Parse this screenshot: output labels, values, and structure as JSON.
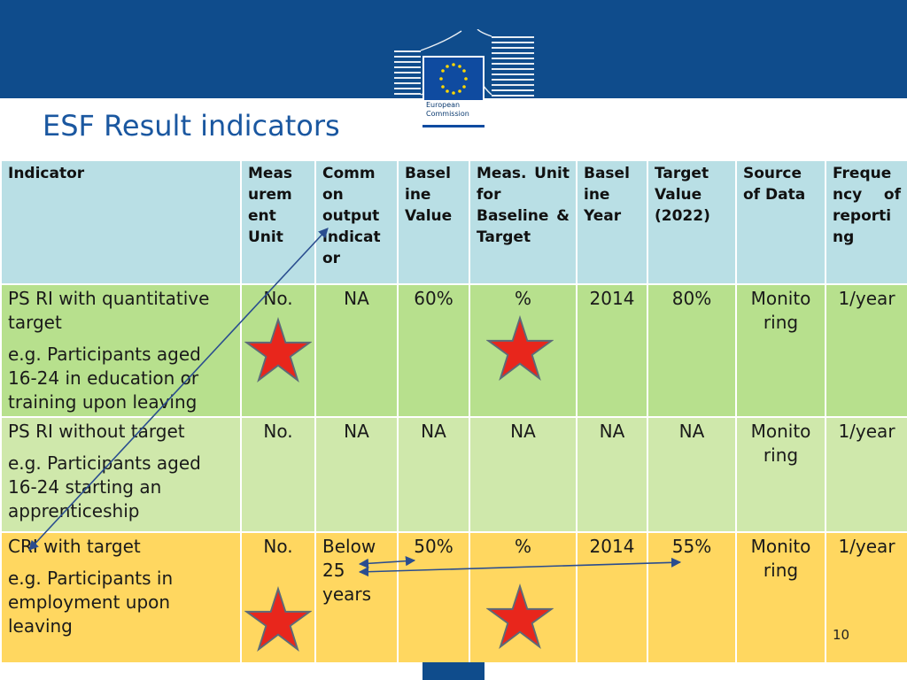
{
  "header": {
    "logo_text": "European Commission",
    "title": "ESF Result indicators"
  },
  "table": {
    "columns": [
      "Indicator",
      "Meas urem ent Unit",
      "Comm on output indicat or",
      "Basel ine Value",
      "Meas. Unit for Baseline & Target",
      "Basel ine Year",
      "Target Value (2022)",
      "Source of Data",
      "Freque ncy of reporti ng"
    ],
    "rows": [
      {
        "indicator": "PS RI with quantitative target",
        "example": "e.g. Participants aged 16-24 in education or training upon leaving",
        "unit": "No.",
        "common_output": "NA",
        "baseline_value": "60%",
        "meas_unit": "%",
        "baseline_year": "2014",
        "target_value": "80%",
        "source": "Monito ring",
        "frequency": "1/year"
      },
      {
        "indicator": "PS RI without  target",
        "example": "e.g. Participants aged 16-24 starting an apprenticeship",
        "unit": "No.",
        "common_output": "NA",
        "baseline_value": "NA",
        "meas_unit": "NA",
        "baseline_year": "NA",
        "target_value": "NA",
        "source": "Monito ring",
        "frequency": "1/year"
      },
      {
        "indicator": "CRI with target",
        "example": "e.g. Participants in employment upon leaving",
        "unit": "No.",
        "common_output": "Below 25 years",
        "baseline_value": "50%",
        "meas_unit": "%",
        "baseline_year": "2014",
        "target_value": "55%",
        "source": "Monito ring",
        "frequency": "1/year"
      }
    ]
  },
  "page_number": "10",
  "colors": {
    "banner": "#0f4c8c",
    "title": "#1a57a0",
    "header_row": "#b9dfe5",
    "row1": "#b7e08d",
    "row2": "#cfe8ab",
    "row3": "#ffd760",
    "star": "#e8261c",
    "arrow": "#2a4d8f"
  },
  "icons": [
    "eu-flag-icon",
    "star-icon",
    "arrow-icon"
  ]
}
